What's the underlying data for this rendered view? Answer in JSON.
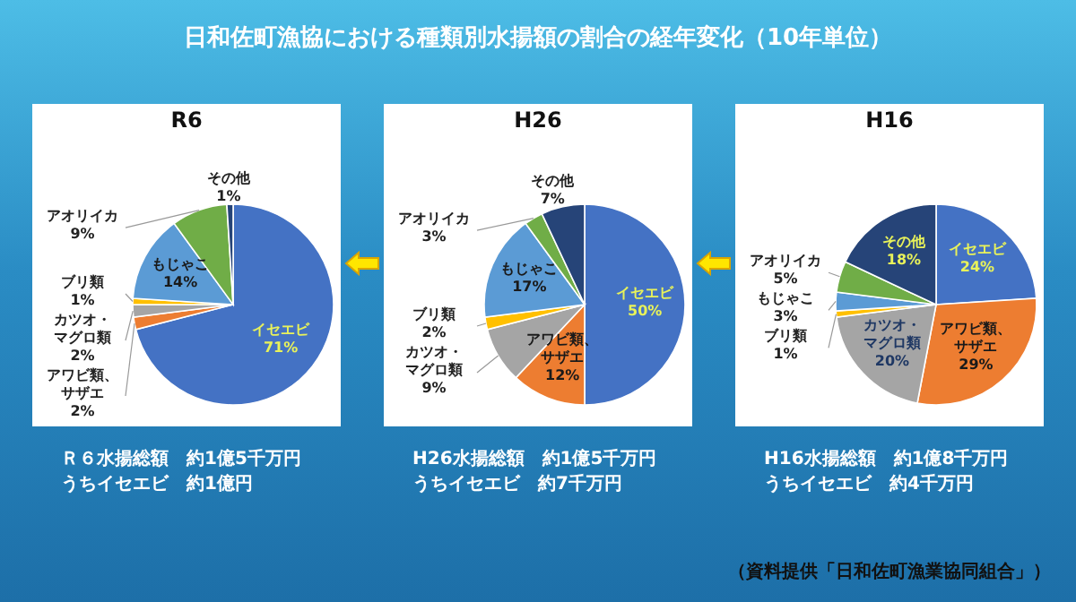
{
  "chart_data": [
    {
      "type": "pie",
      "title": "R6",
      "categories": [
        "イセエビ",
        "アワビ類、サザエ",
        "カツオ・マグロ類",
        "ブリ類",
        "もじゃこ",
        "アオリイカ",
        "その他"
      ],
      "values": [
        71,
        2,
        2,
        1,
        14,
        9,
        1
      ],
      "value_labels": [
        "71%",
        "2%",
        "2%",
        "1%",
        "14%",
        "9%",
        "1%"
      ],
      "colors": [
        "#4472c4",
        "#ed7d31",
        "#a5a5a5",
        "#ffc000",
        "#5b9bd5",
        "#70ad47",
        "#264478"
      ],
      "annotations": [
        "日和佐町漁協における種類別水揚額の割合の経年変化（10年単位）",
        "Ｒ６水揚総額　約1億5千万円",
        "うちイセエビ　約1億円"
      ]
    },
    {
      "type": "pie",
      "title": "H26",
      "categories": [
        "イセエビ",
        "アワビ類、サザエ",
        "カツオ・マグロ類",
        "ブリ類",
        "もじゃこ",
        "アオリイカ",
        "その他"
      ],
      "values": [
        50,
        12,
        9,
        2,
        17,
        3,
        7
      ],
      "value_labels": [
        "50%",
        "12%",
        "9%",
        "2%",
        "17%",
        "3%",
        "7%"
      ],
      "colors": [
        "#4472c4",
        "#ed7d31",
        "#a5a5a5",
        "#ffc000",
        "#5b9bd5",
        "#70ad47",
        "#264478"
      ],
      "annotations": [
        "H26水揚総額　約1億5千万円",
        "うちイセエビ　約7千万円"
      ]
    },
    {
      "type": "pie",
      "title": "H16",
      "categories": [
        "イセエビ",
        "アワビ類、サザエ",
        "カツオ・マグロ類",
        "ブリ類",
        "もじゃこ",
        "アオリイカ",
        "その他"
      ],
      "values": [
        24,
        29,
        20,
        1,
        3,
        5,
        18
      ],
      "value_labels": [
        "24%",
        "29%",
        "20%",
        "1%",
        "3%",
        "5%",
        "18%"
      ],
      "colors": [
        "#4472c4",
        "#ed7d31",
        "#a5a5a5",
        "#ffc000",
        "#5b9bd5",
        "#70ad47",
        "#264478"
      ],
      "annotations": [
        "H16水揚総額　約1億8千万円",
        "うちイセエビ　約4千万円",
        "（資料提供「日和佐町漁業協同組合」）"
      ]
    }
  ]
}
